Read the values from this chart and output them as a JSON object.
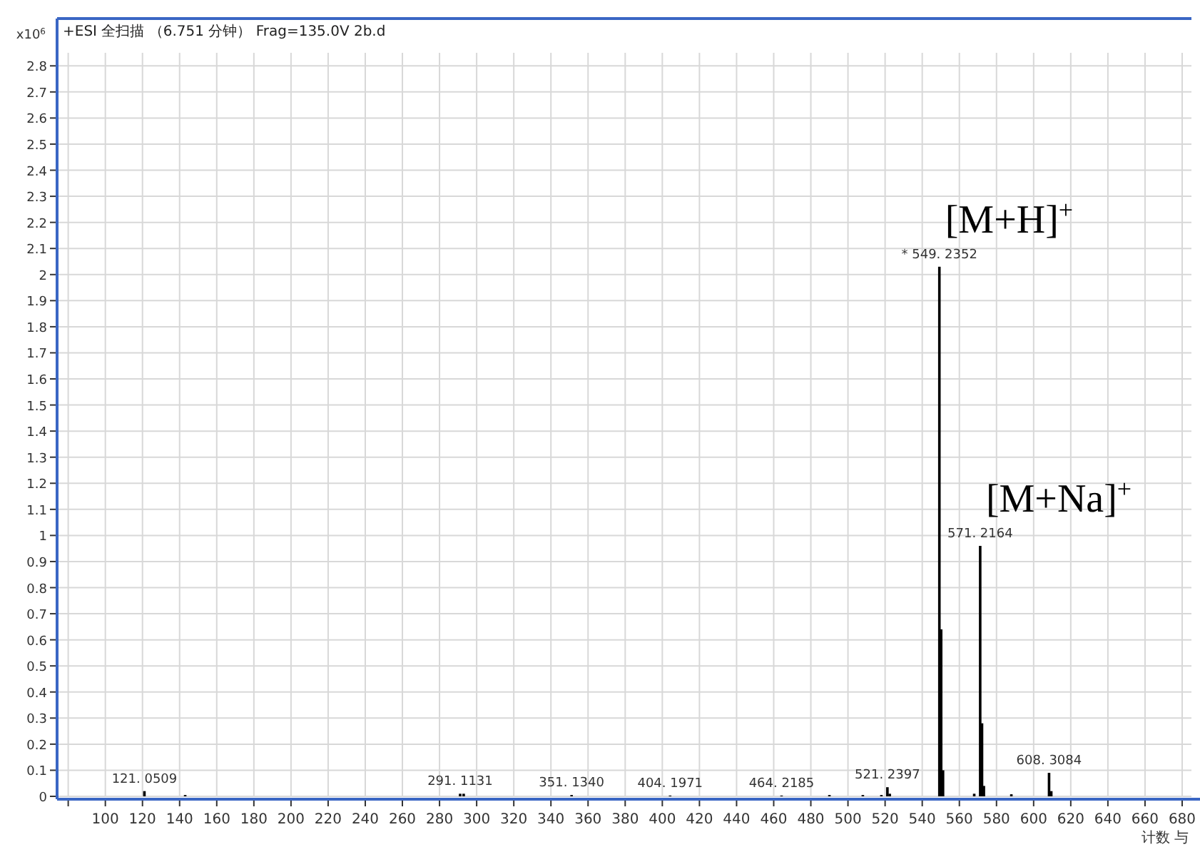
{
  "chart_data": {
    "type": "bar",
    "title": "+ESI 全扫描 （6.751 分钟） Frag=135.0V 2b.d",
    "xlabel": "计数 与",
    "ylabel": "x10$^{6}$",
    "x": [
      121.0509,
      143,
      291.1131,
      293,
      351.134,
      404.1971,
      464.2185,
      490,
      508,
      518,
      521.2397,
      522.5,
      549.2352,
      550.2,
      551.2,
      568,
      571.2164,
      572.2,
      573.2,
      588,
      608.3084,
      609.5
    ],
    "series": [
      {
        "color": "#000000",
        "values": [
          0.02,
          0.005,
          0.01,
          0.01,
          0.005,
          0.003,
          0.003,
          0.005,
          0.005,
          0.005,
          0.035,
          0.01,
          2.03,
          0.64,
          0.1,
          0.01,
          0.96,
          0.28,
          0.04,
          0.008,
          0.09,
          0.02
        ]
      }
    ],
    "annotations": [
      {
        "text": "121. 0509",
        "x": 121.0509,
        "y": 0.02
      },
      {
        "text": "291. 1131",
        "x": 291.1131,
        "y": 0.01
      },
      {
        "text": "351. 1340",
        "x": 351.134,
        "y": 0.005
      },
      {
        "text": "404. 1971",
        "x": 404.1971,
        "y": 0.003
      },
      {
        "text": "464. 2185",
        "x": 464.2185,
        "y": 0.003
      },
      {
        "text": "521. 2397",
        "x": 521.2397,
        "y": 0.035
      },
      {
        "text": "* 549. 2352",
        "x": 549.2352,
        "y": 2.03
      },
      {
        "text": "571. 2164",
        "x": 571.2164,
        "y": 0.96
      },
      {
        "text": "608. 3084",
        "x": 608.3084,
        "y": 0.09
      },
      "[M+H]$^{+}$",
      "[M+Na]$^{+}$"
    ],
    "xlim": [
      74,
      685
    ],
    "ylim": [
      0,
      2.85
    ],
    "xticks": [
      {
        "value": 80,
        "label": null
      },
      100,
      120,
      140,
      160,
      180,
      200,
      220,
      240,
      260,
      280,
      300,
      320,
      340,
      360,
      380,
      400,
      420,
      440,
      460,
      480,
      500,
      520,
      540,
      560,
      580,
      600,
      620,
      640,
      660,
      680
    ],
    "yticks": [
      0,
      0.1,
      0.2,
      0.3,
      0.4,
      0.5,
      0.6,
      0.7,
      0.8,
      0.9,
      1,
      1.1,
      1.2,
      1.3,
      1.4,
      1.5,
      1.6,
      1.7,
      1.8,
      1.9,
      2,
      2.1,
      2.2,
      2.3,
      2.4,
      2.5,
      2.6,
      2.7,
      2.8
    ],
    "grid": true
  }
}
